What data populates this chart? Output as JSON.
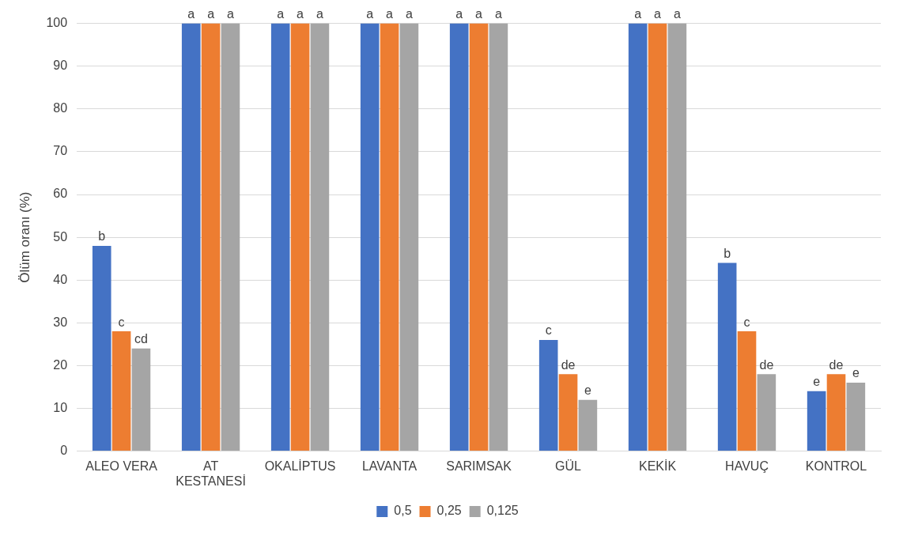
{
  "chart_data": {
    "type": "bar",
    "ylabel": "Ölüm oranı (%)",
    "categories": [
      "ALEO VERA",
      "AT KESTANESİ",
      "OKALİPTUS",
      "LAVANTA",
      "SARIMSAK",
      "GÜL",
      "KEKİK",
      "HAVUÇ",
      "KONTROL"
    ],
    "series": [
      {
        "name": "0,5",
        "color": "#4472c4",
        "values": [
          48,
          100,
          100,
          100,
          100,
          26,
          100,
          44,
          14
        ],
        "value_labels": [
          "b",
          "a",
          "a",
          "a",
          "a",
          "c",
          "a",
          "b",
          "e"
        ]
      },
      {
        "name": "0,25",
        "color": "#ed7d31",
        "values": [
          28,
          100,
          100,
          100,
          100,
          18,
          100,
          28,
          18
        ],
        "value_labels": [
          "c",
          "a",
          "a",
          "a",
          "a",
          "de",
          "a",
          "c",
          "de"
        ]
      },
      {
        "name": "0,125",
        "color": "#a5a5a5",
        "values": [
          24,
          100,
          100,
          100,
          100,
          12,
          100,
          18,
          16
        ],
        "value_labels": [
          "cd",
          "a",
          "a",
          "a",
          "a",
          "e",
          "a",
          "de",
          "e"
        ]
      }
    ],
    "ylim": [
      0,
      100
    ],
    "yticks": [
      0,
      10,
      20,
      30,
      40,
      50,
      60,
      70,
      80,
      90,
      100
    ],
    "grid": "y",
    "legend": "bottom"
  }
}
